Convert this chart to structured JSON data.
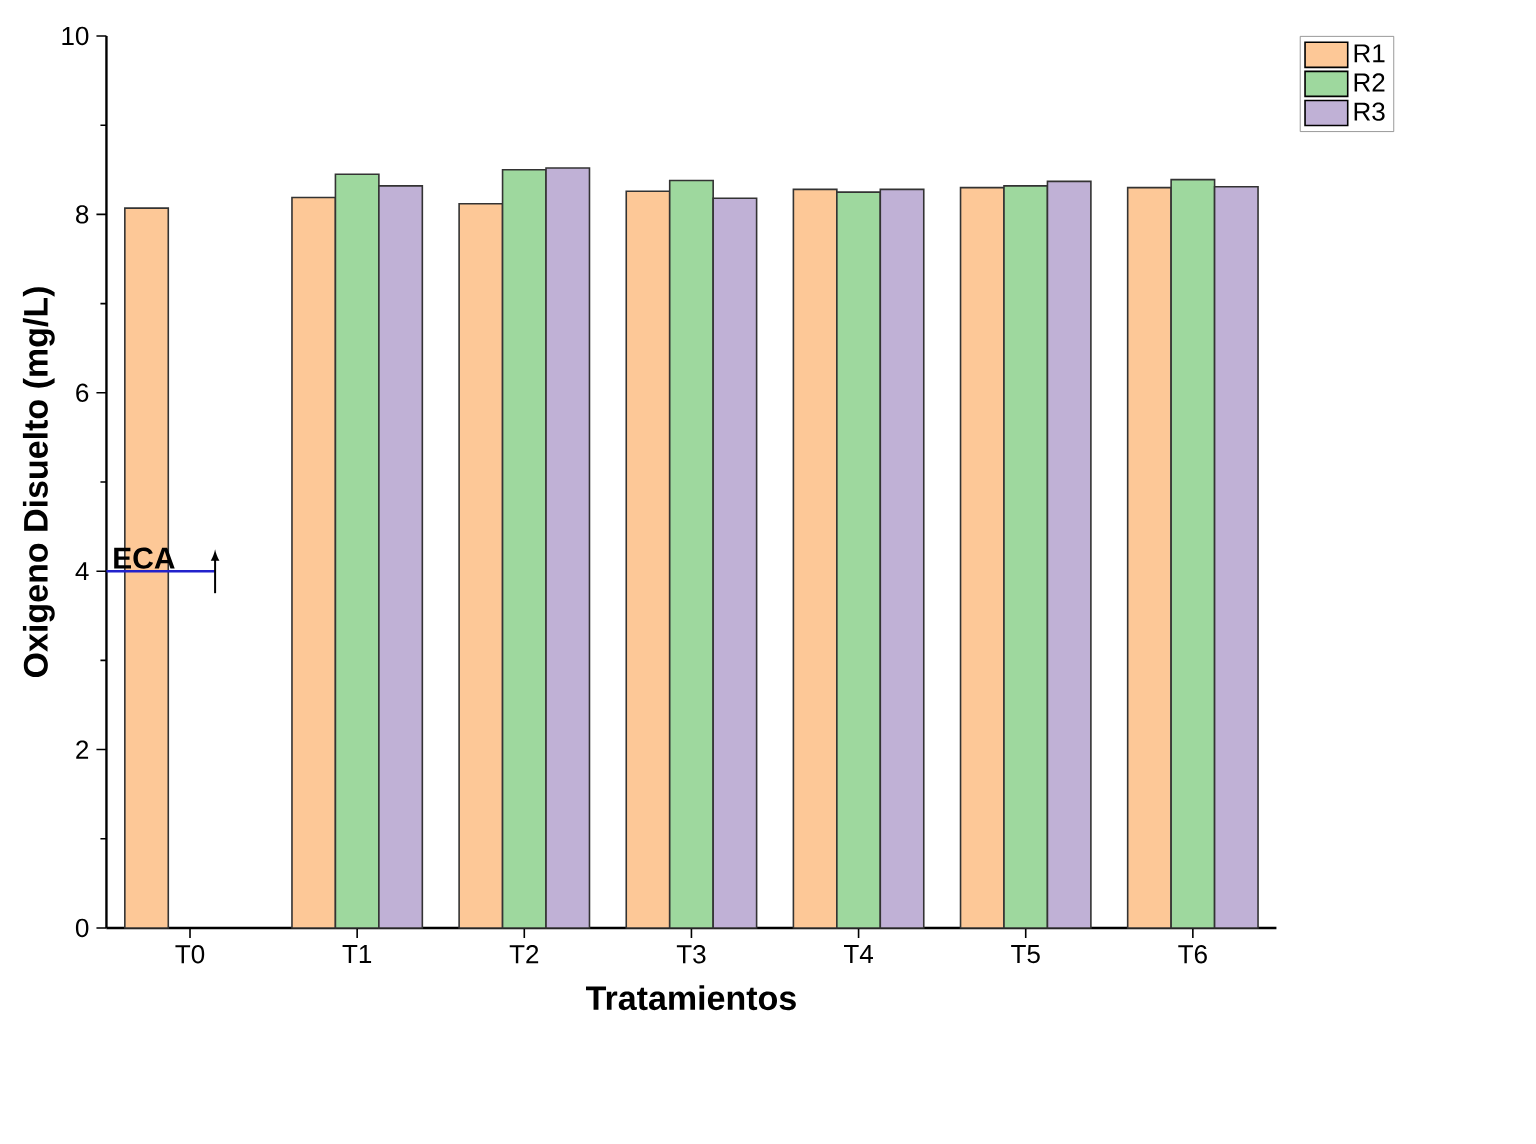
{
  "chart_data": {
    "type": "bar",
    "xlabel": "Tratamientos",
    "ylabel": "Oxigeno Disuelto (mg/L)",
    "categories": [
      "T0",
      "T1",
      "T2",
      "T3",
      "T4",
      "T5",
      "T6"
    ],
    "series": [
      {
        "name": "R1",
        "color": "#fdc897",
        "values": [
          8.07,
          8.19,
          8.12,
          8.26,
          8.28,
          8.3,
          8.3
        ]
      },
      {
        "name": "R2",
        "color": "#9ed89e",
        "values": [
          null,
          8.45,
          8.5,
          8.38,
          8.25,
          8.32,
          8.39
        ]
      },
      {
        "name": "R3",
        "color": "#c0b1d6",
        "values": [
          null,
          8.32,
          8.52,
          8.18,
          8.28,
          8.37,
          8.31
        ]
      }
    ],
    "ylim": [
      0,
      10
    ],
    "yticks": [
      0,
      2,
      4,
      6,
      8,
      10
    ],
    "ref_lines": [
      {
        "axis": "y",
        "value": 4,
        "label": "ECA",
        "color": "#2222cc"
      }
    ],
    "legend": "top right",
    "grid": false
  }
}
